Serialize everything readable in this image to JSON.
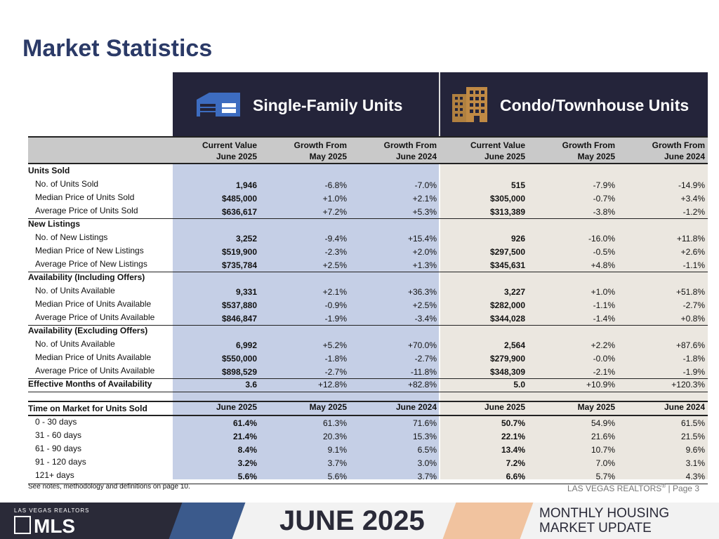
{
  "page_title": "Market Statistics",
  "sf_header": "Single-Family Units",
  "ct_header": "Condo/Townhouse Units",
  "col_headers": [
    {
      "l1": "Current Value",
      "l2": "June 2025"
    },
    {
      "l1": "Growth From",
      "l2": "May 2025"
    },
    {
      "l1": "Growth From",
      "l2": "June 2024"
    },
    {
      "l1": "Current Value",
      "l2": "June 2025"
    },
    {
      "l1": "Growth From",
      "l2": "May 2025"
    },
    {
      "l1": "Growth From",
      "l2": "June 2024"
    }
  ],
  "sections": [
    {
      "title": "Units Sold",
      "rows": [
        {
          "label": "No. of Units Sold",
          "v": [
            "1,946",
            "-6.8%",
            "-7.0%",
            "515",
            "-7.9%",
            "-14.9%"
          ]
        },
        {
          "label": "Median Price of Units Sold",
          "v": [
            "$485,000",
            "+1.0%",
            "+2.1%",
            "$305,000",
            "-0.7%",
            "+3.4%"
          ]
        },
        {
          "label": "Average Price of Units Sold",
          "v": [
            "$636,617",
            "+7.2%",
            "+5.3%",
            "$313,389",
            "-3.8%",
            "-1.2%"
          ]
        }
      ]
    },
    {
      "title": "New Listings",
      "rows": [
        {
          "label": "No. of New Listings",
          "v": [
            "3,252",
            "-9.4%",
            "+15.4%",
            "926",
            "-16.0%",
            "+11.8%"
          ]
        },
        {
          "label": "Median Price of New Listings",
          "v": [
            "$519,900",
            "-2.3%",
            "+2.0%",
            "$297,500",
            "-0.5%",
            "+2.6%"
          ]
        },
        {
          "label": "Average Price of New Listings",
          "v": [
            "$735,784",
            "+2.5%",
            "+1.3%",
            "$345,631",
            "+4.8%",
            "-1.1%"
          ]
        }
      ]
    },
    {
      "title": "Availability (Including Offers)",
      "rows": [
        {
          "label": "No. of Units Available",
          "v": [
            "9,331",
            "+2.1%",
            "+36.3%",
            "3,227",
            "+1.0%",
            "+51.8%"
          ]
        },
        {
          "label": "Median Price of Units Available",
          "v": [
            "$537,880",
            "-0.9%",
            "+2.5%",
            "$282,000",
            "-1.1%",
            "-2.7%"
          ]
        },
        {
          "label": "Average Price of Units Available",
          "v": [
            "$846,847",
            "-1.9%",
            "-3.4%",
            "$344,028",
            "-1.4%",
            "+0.8%"
          ]
        }
      ]
    },
    {
      "title": "Availability (Excluding Offers)",
      "rows": [
        {
          "label": "No. of Units Available",
          "v": [
            "6,992",
            "+5.2%",
            "+70.0%",
            "2,564",
            "+2.2%",
            "+87.6%"
          ]
        },
        {
          "label": "Median Price of Units Available",
          "v": [
            "$550,000",
            "-1.8%",
            "-2.7%",
            "$279,900",
            "-0.0%",
            "-1.8%"
          ]
        },
        {
          "label": "Average Price of Units Available",
          "v": [
            "$898,529",
            "-2.7%",
            "-11.8%",
            "$348,309",
            "-2.1%",
            "-1.9%"
          ]
        }
      ]
    }
  ],
  "effective": {
    "label": "Effective Months of Availability",
    "v": [
      "3.6",
      "+12.8%",
      "+82.8%",
      "5.0",
      "+10.9%",
      "+120.3%"
    ]
  },
  "tom_header": {
    "label": "Time on Market for Units Sold",
    "v": [
      "June 2025",
      "May 2025",
      "June 2024",
      "June 2025",
      "May 2025",
      "June 2024"
    ]
  },
  "tom_rows": [
    {
      "label": "0 - 30 days",
      "v": [
        "61.4%",
        "61.3%",
        "71.6%",
        "50.7%",
        "54.9%",
        "61.5%"
      ]
    },
    {
      "label": "31 - 60 days",
      "v": [
        "21.4%",
        "20.3%",
        "15.3%",
        "22.1%",
        "21.6%",
        "21.5%"
      ]
    },
    {
      "label": "61 - 90 days",
      "v": [
        "8.4%",
        "9.1%",
        "6.5%",
        "13.4%",
        "10.7%",
        "9.6%"
      ]
    },
    {
      "label": "91 - 120 days",
      "v": [
        "3.2%",
        "3.7%",
        "3.0%",
        "7.2%",
        "7.0%",
        "3.1%"
      ]
    },
    {
      "label": "121+ days",
      "v": [
        "5.6%",
        "5.6%",
        "3.7%",
        "6.6%",
        "5.7%",
        "4.3%"
      ]
    }
  ],
  "footnote": "See notes, methodology and definitions on page 10.",
  "page_ref_org": "LAS VEGAS REALTORS",
  "page_ref_sup": "®",
  "page_ref_page": " | Page 3",
  "banner": {
    "org_small": "LAS VEGAS REALTORS",
    "mls": "MLS",
    "date": "JUNE 2025",
    "mhu1": "MONTHLY HOUSING",
    "mhu2": "MARKET UPDATE"
  },
  "colors": {
    "navy": "#24243a",
    "sf_col": "#c5cfe6",
    "ct_col": "#ebe7e0",
    "title": "#2b3a67",
    "sf_icon": "#3d6cc0",
    "ct_icon": "#b08040"
  },
  "icons": {
    "sf": "house-garage-icon",
    "ct": "condo-building-icon"
  }
}
